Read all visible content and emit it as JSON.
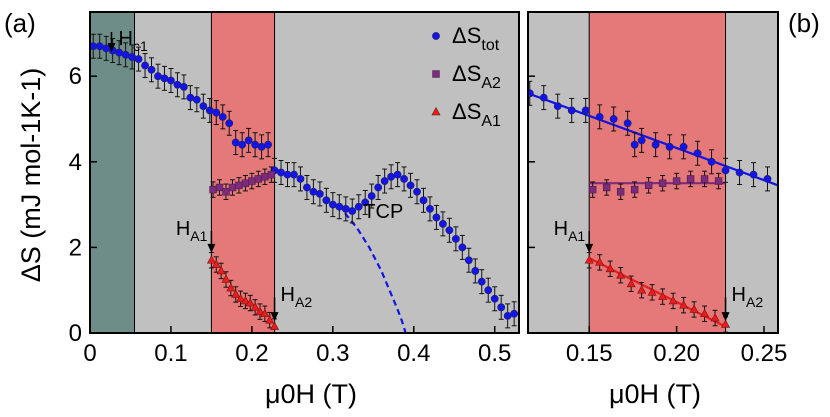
{
  "colors": {
    "background": "#c0c0c0",
    "region_green": "#6e8d89",
    "region_red": "#e57878",
    "blue": "#1414e6",
    "purple": "#7d2c7d",
    "red": "#e61e1e"
  },
  "chart_data": [
    {
      "type": "scatter",
      "panel_label": "(a)",
      "xlabel": "μ0H (T)",
      "ylabel": "ΔS (mJ mol-1K-1)",
      "xlim": [
        0,
        0.53
      ],
      "ylim": [
        0,
        7.5
      ],
      "xticks": [
        0,
        0.1,
        0.2,
        0.3,
        0.4,
        0.5
      ],
      "xtick_labels": [
        "0",
        "0.1",
        "0.2",
        "0.3",
        "0.4",
        "0.5"
      ],
      "yticks": [
        0,
        2,
        4,
        6
      ],
      "ytick_labels": [
        "0",
        "2",
        "4",
        "6"
      ],
      "regions": [
        {
          "x0": 0,
          "x1": 0.055,
          "color": "region_green"
        },
        {
          "x0": 0.15,
          "x1": 0.228,
          "color": "region_red"
        }
      ],
      "legend": {
        "placement": "top-right",
        "entries": [
          {
            "base": "ΔS",
            "sub": "tot",
            "series": "ΔS_tot"
          },
          {
            "base": "ΔS",
            "sub": "A2",
            "series": "ΔS_A2"
          },
          {
            "base": "ΔS",
            "sub": "A1",
            "series": "ΔS_A1"
          }
        ]
      },
      "annotations": [
        {
          "base": "H",
          "sub": "c1",
          "x": 0.055,
          "y": 6.8
        },
        {
          "base": "H",
          "sub": "A1",
          "x": 0.15,
          "y": 2.2
        },
        {
          "base": "H",
          "sub": "A2",
          "x": 0.228,
          "y": 0.65
        },
        {
          "base": "TCP",
          "sub": "",
          "x": 0.35,
          "y": 2.5
        }
      ],
      "series": [
        {
          "name": "ΔS_tot",
          "marker": "circle",
          "color": "blue",
          "x": [
            0.004,
            0.012,
            0.02,
            0.028,
            0.036,
            0.044,
            0.052,
            0.06,
            0.068,
            0.076,
            0.084,
            0.092,
            0.1,
            0.108,
            0.116,
            0.124,
            0.132,
            0.14,
            0.148,
            0.156,
            0.164,
            0.172,
            0.18,
            0.188,
            0.196,
            0.204,
            0.212,
            0.22,
            0.228,
            0.236,
            0.244,
            0.252,
            0.26,
            0.268,
            0.276,
            0.284,
            0.292,
            0.3,
            0.308,
            0.316,
            0.324,
            0.332,
            0.34,
            0.348,
            0.356,
            0.364,
            0.372,
            0.38,
            0.388,
            0.396,
            0.404,
            0.412,
            0.42,
            0.428,
            0.436,
            0.444,
            0.452,
            0.46,
            0.468,
            0.476,
            0.484,
            0.492,
            0.5,
            0.508,
            0.516,
            0.524
          ],
          "y": [
            6.7,
            6.7,
            6.65,
            6.6,
            6.55,
            6.5,
            6.45,
            6.4,
            6.25,
            6.15,
            6.0,
            5.95,
            5.9,
            5.8,
            5.75,
            5.5,
            5.45,
            5.3,
            5.2,
            5.15,
            5.05,
            4.9,
            4.45,
            4.4,
            4.5,
            4.4,
            4.35,
            4.4,
            3.8,
            3.75,
            3.7,
            3.7,
            3.6,
            3.4,
            3.3,
            3.25,
            3.1,
            3.0,
            2.95,
            2.9,
            2.85,
            2.95,
            3.05,
            3.2,
            3.4,
            3.55,
            3.65,
            3.7,
            3.6,
            3.45,
            3.3,
            3.1,
            2.9,
            2.7,
            2.55,
            2.4,
            2.2,
            2.0,
            1.7,
            1.45,
            1.2,
            1.0,
            0.8,
            0.6,
            0.4,
            0.45
          ]
        },
        {
          "name": "ΔS_A2",
          "marker": "square",
          "color": "purple",
          "x": [
            0.152,
            0.16,
            0.168,
            0.176,
            0.184,
            0.192,
            0.2,
            0.208,
            0.216,
            0.224
          ],
          "y": [
            3.35,
            3.4,
            3.3,
            3.4,
            3.45,
            3.5,
            3.55,
            3.6,
            3.65,
            3.7
          ]
        },
        {
          "name": "ΔS_A1",
          "marker": "triangle",
          "color": "red",
          "x": [
            0.15,
            0.156,
            0.162,
            0.168,
            0.174,
            0.18,
            0.186,
            0.192,
            0.198,
            0.204,
            0.21,
            0.216,
            0.222,
            0.228
          ],
          "y": [
            1.7,
            1.6,
            1.45,
            1.25,
            1.05,
            0.9,
            0.8,
            0.75,
            0.7,
            0.6,
            0.5,
            0.45,
            0.3,
            0.15
          ]
        }
      ],
      "lines": [
        {
          "style": "dashed",
          "color": "blue",
          "x": [
            0.315,
            0.33,
            0.345,
            0.36,
            0.37,
            0.38,
            0.385,
            0.39
          ],
          "y": [
            2.8,
            2.45,
            2.0,
            1.45,
            1.0,
            0.55,
            0.3,
            0.0
          ]
        }
      ]
    },
    {
      "type": "scatter",
      "panel_label": "(b)",
      "xlabel": "μ0H (T)",
      "ylabel": "",
      "xlim": [
        0.115,
        0.258
      ],
      "ylim": [
        0,
        7.5
      ],
      "xticks": [
        0.15,
        0.2,
        0.25
      ],
      "xtick_labels": [
        "0.15",
        "0.20",
        "0.25"
      ],
      "regions": [
        {
          "x0": 0.15,
          "x1": 0.228,
          "color": "region_red"
        }
      ],
      "annotations": [
        {
          "base": "H",
          "sub": "A1",
          "x": 0.15,
          "y": 2.2
        },
        {
          "base": "H",
          "sub": "A2",
          "x": 0.228,
          "y": 0.65
        }
      ],
      "series": [
        {
          "name": "ΔS_tot",
          "marker": "circle",
          "color": "blue",
          "x": [
            0.116,
            0.124,
            0.132,
            0.14,
            0.148,
            0.156,
            0.164,
            0.172,
            0.176,
            0.18,
            0.188,
            0.196,
            0.204,
            0.212,
            0.22,
            0.228,
            0.236,
            0.244,
            0.252
          ],
          "y": [
            5.6,
            5.5,
            5.3,
            5.2,
            5.2,
            5.05,
            5.0,
            4.9,
            4.4,
            4.5,
            4.4,
            4.35,
            4.35,
            4.2,
            4.0,
            3.8,
            3.75,
            3.7,
            3.6
          ]
        },
        {
          "name": "ΔS_A2",
          "marker": "square",
          "color": "purple",
          "x": [
            0.152,
            0.16,
            0.168,
            0.176,
            0.184,
            0.192,
            0.2,
            0.208,
            0.216,
            0.224
          ],
          "y": [
            3.35,
            3.4,
            3.3,
            3.35,
            3.45,
            3.5,
            3.55,
            3.6,
            3.6,
            3.55
          ]
        },
        {
          "name": "ΔS_A1",
          "marker": "triangle",
          "color": "red",
          "x": [
            0.15,
            0.156,
            0.162,
            0.168,
            0.174,
            0.18,
            0.186,
            0.192,
            0.198,
            0.204,
            0.21,
            0.216,
            0.222,
            0.228
          ],
          "y": [
            1.7,
            1.65,
            1.5,
            1.35,
            1.15,
            1.0,
            0.95,
            0.85,
            0.75,
            0.65,
            0.55,
            0.45,
            0.35,
            0.2
          ]
        }
      ],
      "lines": [
        {
          "style": "solid",
          "color": "blue",
          "x": [
            0.115,
            0.258
          ],
          "y": [
            5.6,
            3.45
          ]
        },
        {
          "style": "solid",
          "color": "purple",
          "x": [
            0.15,
            0.228
          ],
          "y": [
            3.5,
            3.5
          ]
        },
        {
          "style": "solid",
          "color": "red",
          "x": [
            0.15,
            0.228
          ],
          "y": [
            1.75,
            0.15
          ]
        }
      ]
    }
  ]
}
